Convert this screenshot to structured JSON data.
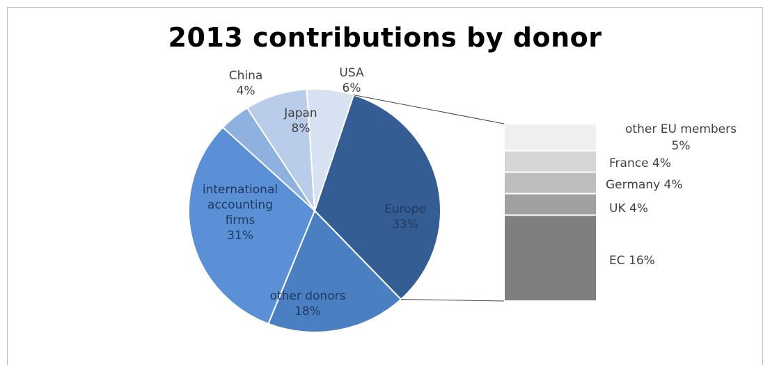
{
  "chart_data": {
    "type": "pie",
    "title": "2013 contributions by donor",
    "slices": [
      {
        "label": "Europe",
        "value": 33,
        "value_text": "33%",
        "color": "#345d93"
      },
      {
        "label": "other donors",
        "value": 18,
        "value_text": "18%",
        "color": "#4a7fc1"
      },
      {
        "label": "international accounting firms",
        "value": 31,
        "value_text": "31%",
        "color": "#5b8fd6"
      },
      {
        "label": "China",
        "value": 4,
        "value_text": "4%",
        "color": "#8fb1e0"
      },
      {
        "label": "Japan",
        "value": 8,
        "value_text": "8%",
        "color": "#b9cdea"
      },
      {
        "label": "USA",
        "value": 6,
        "value_text": "6%",
        "color": "#d6e1f1"
      }
    ],
    "breakdown": {
      "of": "Europe",
      "type": "stacked-bar",
      "segments": [
        {
          "label": "EC",
          "value": 16,
          "value_text": "16%",
          "color": "#7f7f7f"
        },
        {
          "label": "UK",
          "value": 4,
          "value_text": "4%",
          "color": "#a0a0a0"
        },
        {
          "label": "Germany",
          "value": 4,
          "value_text": "4%",
          "color": "#bebebe"
        },
        {
          "label": "France",
          "value": 4,
          "value_text": "4%",
          "color": "#d6d6d6"
        },
        {
          "label": "other EU members",
          "value": 5,
          "value_text": "5%",
          "color": "#efefef"
        }
      ]
    },
    "legend": "none"
  }
}
